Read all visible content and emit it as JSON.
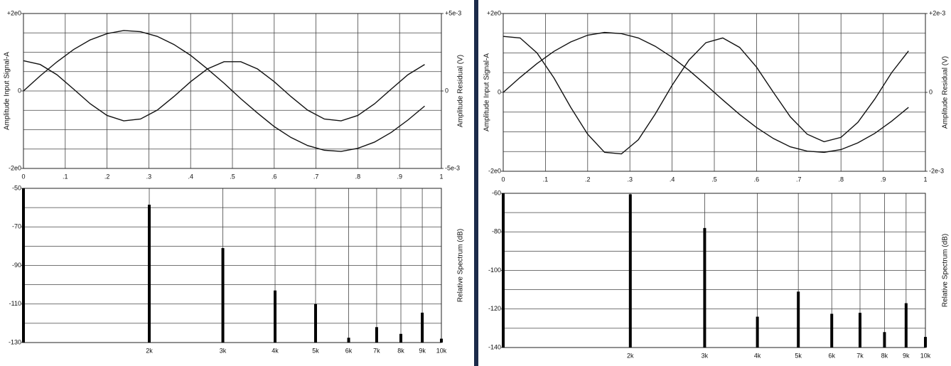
{
  "chart_data": [
    {
      "type": "line",
      "ylabel": "Amplitude Input Signal-A",
      "y2label": "Amplitude Residual (V)",
      "x": [
        0,
        0.04,
        0.08,
        0.12,
        0.16,
        0.2,
        0.24,
        0.28,
        0.32,
        0.36,
        0.4,
        0.44,
        0.48,
        0.52,
        0.56,
        0.6,
        0.64,
        0.68,
        0.72,
        0.76,
        0.8,
        0.84,
        0.88,
        0.92,
        0.96
      ],
      "series": [
        {
          "color": "#111111",
          "values": [
            0,
            0.39,
            0.75,
            1.07,
            1.32,
            1.48,
            1.56,
            1.53,
            1.41,
            1.2,
            0.92,
            0.57,
            0.2,
            -0.2,
            -0.57,
            -0.92,
            -1.2,
            -1.41,
            -1.53,
            -1.56,
            -1.48,
            -1.32,
            -1.07,
            -0.75,
            -0.39
          ]
        },
        {
          "color": "#111111",
          "axis": "y2",
          "values": [
            0.00195,
            0.00171,
            0.00105,
            0.00012,
            -0.00083,
            -0.00158,
            -0.00193,
            -0.00181,
            -0.00124,
            -0.00036,
            0.0006,
            0.00142,
            0.00189,
            0.00189,
            0.00142,
            0.0006,
            -0.00036,
            -0.00124,
            -0.00181,
            -0.00193,
            -0.00158,
            -0.00083,
            0.00012,
            0.00105,
            0.00171
          ]
        }
      ],
      "xlim": [
        0,
        1
      ],
      "xticks": [
        0,
        {
          "value": 0.1,
          "label": ".1"
        },
        {
          "value": 0.2,
          "label": ".2"
        },
        {
          "value": 0.3,
          "label": ".3"
        },
        {
          "value": 0.4,
          "label": ".4"
        },
        {
          "value": 0.5,
          "label": ".5"
        },
        {
          "value": 0.6,
          "label": ".6"
        },
        {
          "value": 0.7,
          "label": ".7"
        },
        {
          "value": 0.8,
          "label": ".8"
        },
        {
          "value": 0.9,
          "label": ".9"
        },
        1
      ],
      "ylim": [
        -2,
        2
      ],
      "yticks": [
        {
          "value": -2,
          "label": "-2e0"
        },
        0,
        {
          "value": 2,
          "label": "+2e0"
        }
      ],
      "y2lim": [
        -0.005,
        0.005
      ],
      "y2ticks": [
        {
          "value": -0.005,
          "label": "-5e-3"
        },
        0,
        {
          "value": 0.005,
          "label": "+5e-3"
        }
      ],
      "grid": true
    },
    {
      "type": "bar",
      "y2label": "Relative Spectrum (dB)",
      "color": "#000000",
      "xscale": "log",
      "x": [
        1000,
        2000,
        3000,
        4000,
        5000,
        6000,
        7000,
        8000,
        9000,
        10000
      ],
      "values": [
        -50,
        -58.5,
        -81,
        -103,
        -110,
        -127.5,
        -122,
        -125.5,
        -114.5,
        -128
      ],
      "xlim": [
        1000,
        10000
      ],
      "xticks": [
        {
          "value": 2000,
          "label": "2k"
        },
        {
          "value": 3000,
          "label": "3k"
        },
        {
          "value": 4000,
          "label": "4k"
        },
        {
          "value": 5000,
          "label": "5k"
        },
        {
          "value": 6000,
          "label": "6k"
        },
        {
          "value": 7000,
          "label": "7k"
        },
        {
          "value": 8000,
          "label": "8k"
        },
        {
          "value": 9000,
          "label": "9k"
        },
        {
          "value": 10000,
          "label": "10k"
        }
      ],
      "ylim": [
        -130,
        -50
      ],
      "yticks": [
        -130,
        -110,
        -90,
        -70,
        -50
      ],
      "grid": true
    },
    {
      "type": "line",
      "ylabel": "Amplitude Input Signal-A",
      "y2label": "Amplitude Residual (V)",
      "x": [
        0,
        0.04,
        0.08,
        0.12,
        0.16,
        0.2,
        0.24,
        0.28,
        0.32,
        0.36,
        0.4,
        0.44,
        0.48,
        0.52,
        0.56,
        0.6,
        0.64,
        0.68,
        0.72,
        0.76,
        0.8,
        0.84,
        0.88,
        0.92,
        0.96
      ],
      "series": [
        {
          "color": "#111111",
          "values": [
            0,
            0.38,
            0.73,
            1.04,
            1.28,
            1.45,
            1.52,
            1.49,
            1.38,
            1.17,
            0.89,
            0.56,
            0.19,
            -0.19,
            -0.56,
            -0.89,
            -1.17,
            -1.38,
            -1.49,
            -1.52,
            -1.45,
            -1.28,
            -1.04,
            -0.73,
            -0.38
          ]
        },
        {
          "color": "#111111",
          "axis": "y2",
          "values": [
            0.00142,
            0.00138,
            0.001,
            0.00037,
            -0.00038,
            -0.00106,
            -0.00152,
            -0.00156,
            -0.0012,
            -0.00055,
            0.00018,
            0.00082,
            0.00126,
            0.00138,
            0.00114,
            0.00064,
            0,
            -0.00062,
            -0.00106,
            -0.00125,
            -0.00114,
            -0.00076,
            -0.00017,
            0.0005,
            0.00105
          ]
        }
      ],
      "xlim": [
        0,
        1
      ],
      "xticks": [
        0,
        {
          "value": 0.1,
          "label": ".1"
        },
        {
          "value": 0.2,
          "label": ".2"
        },
        {
          "value": 0.3,
          "label": ".3"
        },
        {
          "value": 0.4,
          "label": ".4"
        },
        {
          "value": 0.5,
          "label": ".5"
        },
        {
          "value": 0.6,
          "label": ".6"
        },
        {
          "value": 0.7,
          "label": ".7"
        },
        {
          "value": 0.8,
          "label": ".8"
        },
        {
          "value": 0.9,
          "label": ".9"
        },
        1
      ],
      "ylim": [
        -2,
        2
      ],
      "yticks": [
        {
          "value": -2,
          "label": "-2e0"
        },
        0,
        {
          "value": 2,
          "label": "+2e0"
        }
      ],
      "y2lim": [
        -0.002,
        0.002
      ],
      "y2ticks": [
        {
          "value": -0.002,
          "label": "-2e-3"
        },
        0,
        {
          "value": 0.002,
          "label": "+2e-3"
        }
      ],
      "grid": true
    },
    {
      "type": "bar",
      "y2label": "Relative Spectrum (dB)",
      "color": "#000000",
      "xscale": "log",
      "x": [
        1000,
        2000,
        3000,
        4000,
        5000,
        6000,
        7000,
        8000,
        9000,
        10000
      ],
      "values": [
        -60,
        -60.5,
        -78,
        -124,
        -111,
        -122.5,
        -122,
        -132,
        -117,
        -134.5
      ],
      "xlim": [
        1000,
        10000
      ],
      "xticks": [
        {
          "value": 2000,
          "label": "2k"
        },
        {
          "value": 3000,
          "label": "3k"
        },
        {
          "value": 4000,
          "label": "4k"
        },
        {
          "value": 5000,
          "label": "5k"
        },
        {
          "value": 6000,
          "label": "6k"
        },
        {
          "value": 7000,
          "label": "7k"
        },
        {
          "value": 8000,
          "label": "8k"
        },
        {
          "value": 9000,
          "label": "9k"
        },
        {
          "value": 10000,
          "label": "10k"
        }
      ],
      "ylim": [
        -140,
        -60
      ],
      "yticks": [
        -140,
        -120,
        -100,
        -80,
        -60
      ],
      "grid": true
    }
  ]
}
